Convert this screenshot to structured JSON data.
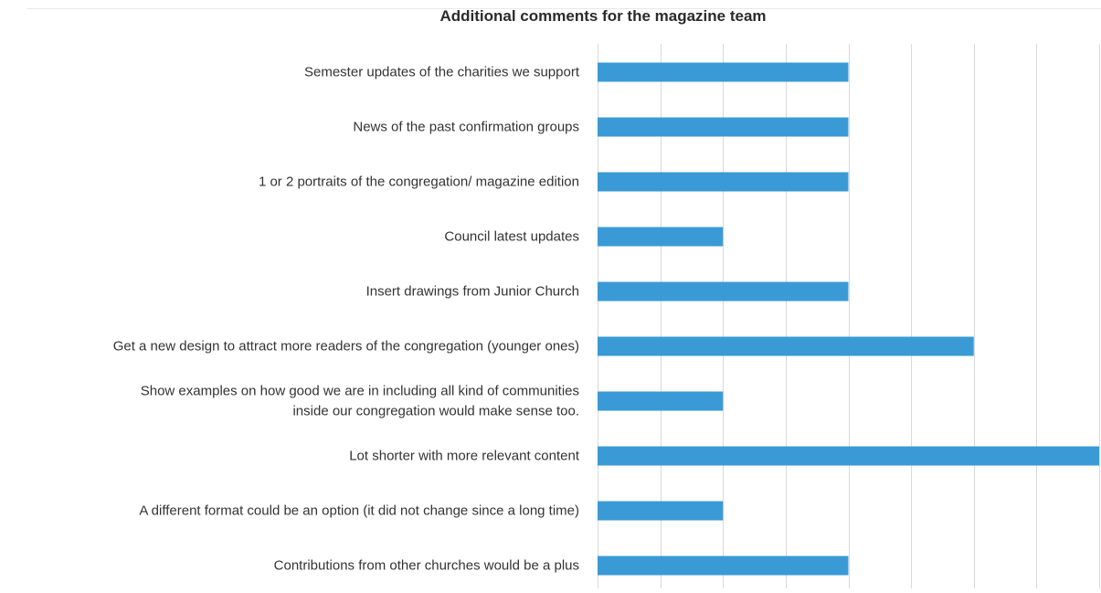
{
  "chart_data": {
    "type": "bar",
    "orientation": "horizontal",
    "title": "Additional comments for the magazine team",
    "categories": [
      [
        "Semester updates of the charities we support"
      ],
      [
        "News of the past confirmation groups"
      ],
      [
        "1 or 2 portraits of the congregation/ magazine edition"
      ],
      [
        "Council latest updates"
      ],
      [
        "Insert drawings from Junior Church"
      ],
      [
        "Get a new design to attract more readers of the congregation (younger ones)"
      ],
      [
        "Show examples on how good we are in including all kind of communities",
        "inside our congregation would make sense too."
      ],
      [
        "Lot shorter with more relevant content"
      ],
      [
        "A different format could be an option (it did not change since a long time)"
      ],
      [
        "Contributions from other churches would be a plus"
      ]
    ],
    "values": [
      2,
      2,
      2,
      1,
      2,
      3,
      1,
      4,
      1,
      2
    ],
    "xlim": [
      0,
      4
    ],
    "grid": true,
    "bar_color": "#3a9ad6",
    "gridline_color": "#d9d9d9"
  }
}
